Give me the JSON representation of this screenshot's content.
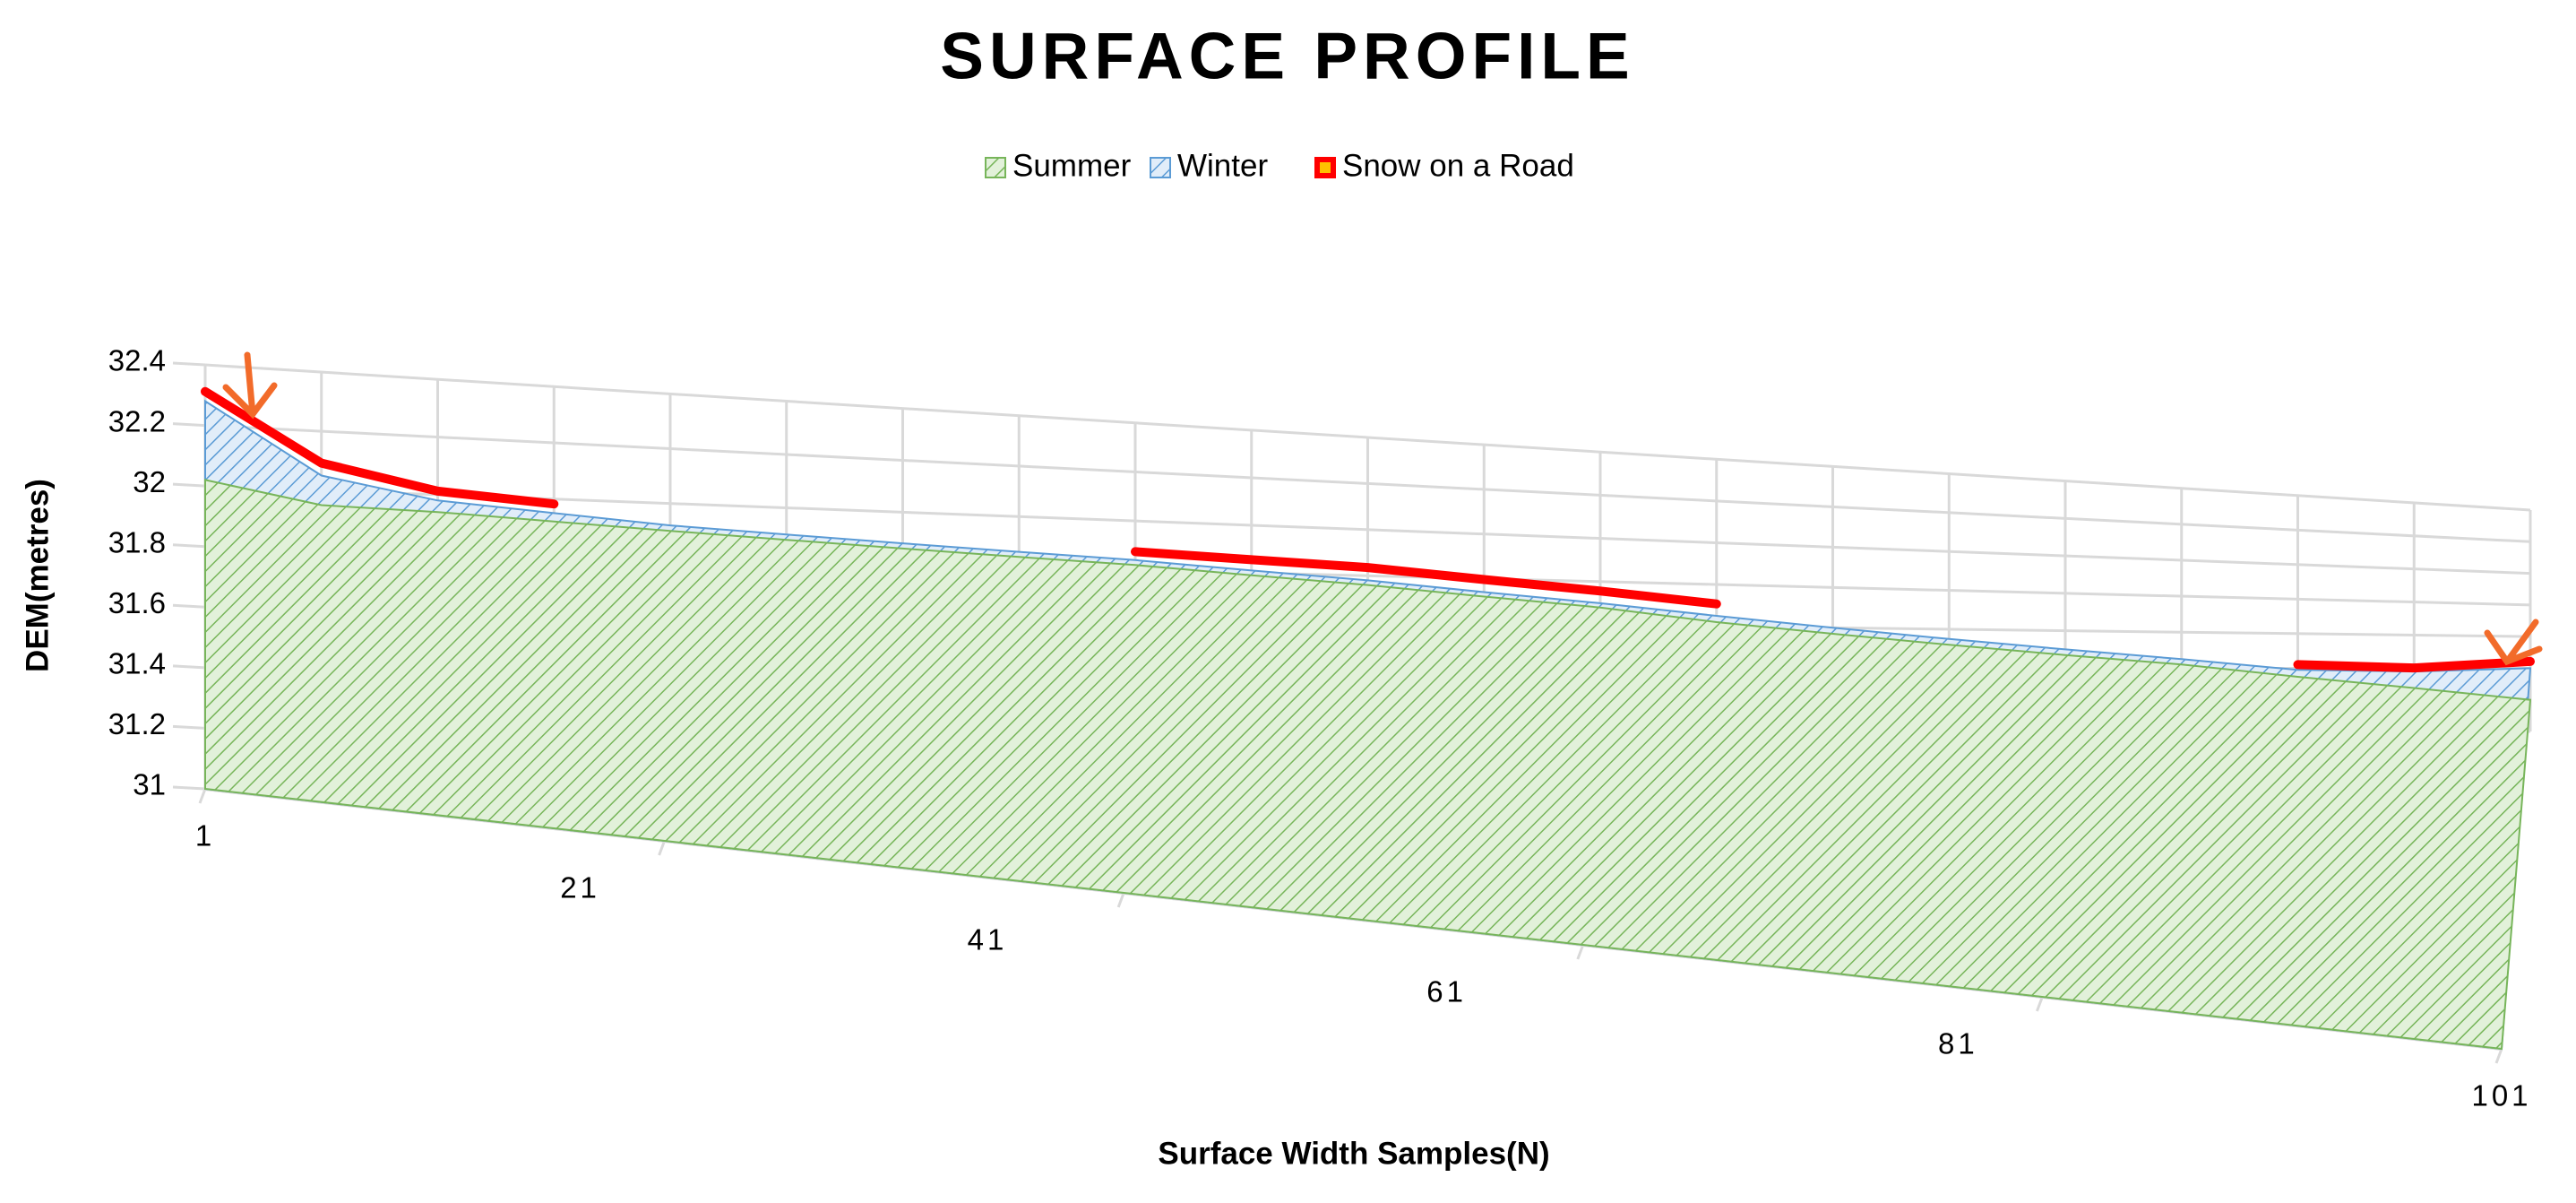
{
  "chart_data": {
    "type": "area3d",
    "title": "SURFACE PROFILE",
    "x_label": "Surface Width Samples(N)",
    "y_label": "DEM(metres)",
    "x": [
      1,
      6,
      11,
      16,
      21,
      26,
      31,
      36,
      41,
      46,
      51,
      56,
      61,
      66,
      71,
      76,
      81,
      86,
      91,
      96,
      101
    ],
    "xlim": [
      1,
      101
    ],
    "xticks": [
      1,
      21,
      41,
      61,
      81,
      101
    ],
    "ylim": [
      31,
      32.4
    ],
    "yticks": [
      31,
      31.2,
      31.4,
      31.6,
      31.8,
      32,
      32.2,
      32.4
    ],
    "grid": true,
    "legend": "top",
    "series": [
      {
        "name": "Summer",
        "color": "#77b55a",
        "kind": "area",
        "values": [
          32.02,
          31.95,
          31.94,
          31.92,
          31.9,
          31.88,
          31.86,
          31.84,
          31.82,
          31.79,
          31.76,
          31.72,
          31.68,
          31.62,
          31.57,
          31.52,
          31.47,
          31.42,
          31.35,
          31.28,
          31.2
        ]
      },
      {
        "name": "Winter",
        "color": "#5b9bd5",
        "kind": "area",
        "values": [
          32.28,
          32.05,
          31.98,
          31.95,
          31.92,
          31.9,
          31.88,
          31.86,
          31.84,
          31.81,
          31.78,
          31.74,
          31.7,
          31.65,
          31.6,
          31.55,
          31.5,
          31.45,
          31.39,
          31.38,
          31.4
        ]
      },
      {
        "name": "Snow on a Road",
        "color": "#ff0000",
        "kind": "line",
        "values": [
          32.3,
          32.08,
          32.0,
          31.97,
          null,
          null,
          null,
          null,
          31.86,
          31.84,
          31.82,
          31.78,
          31.74,
          31.69,
          null,
          null,
          null,
          null,
          31.4,
          31.38,
          31.42
        ]
      }
    ]
  }
}
